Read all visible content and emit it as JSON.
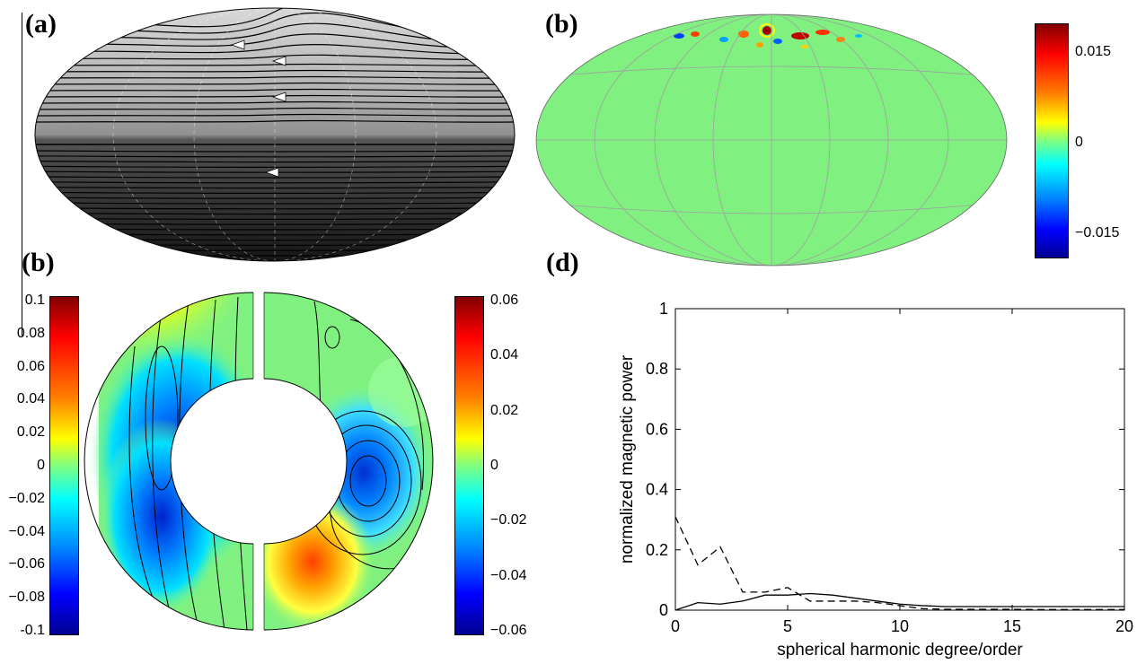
{
  "panels": {
    "a_label": "(a)",
    "b_top_label": "(b)",
    "b_bottom_label": "(b)",
    "d_label": "(d)"
  },
  "colorbar_top": {
    "ticks": [
      "0.015",
      "0",
      "−0.015"
    ]
  },
  "colorbar_left": {
    "ticks": [
      "0.1",
      "0.08",
      "0.06",
      "0.04",
      "0.02",
      "0",
      "−0.02",
      "−0.04",
      "−0.06",
      "−0.08",
      "-0.1"
    ]
  },
  "colorbar_right": {
    "ticks": [
      "0.06",
      "0.04",
      "0.02",
      "0",
      "−0.02",
      "−0.04",
      "−0.06"
    ]
  },
  "colors": {
    "jet": [
      "#00008f",
      "#0000ff",
      "#0080ff",
      "#00ffff",
      "#80ff80",
      "#ffff00",
      "#ff8000",
      "#ff0000",
      "#800000"
    ],
    "map_green": "#80f080"
  },
  "chart_data": {
    "type": "line",
    "xlabel": "spherical harmonic degree/order",
    "ylabel": "normalized magnetic power",
    "xlim": [
      0,
      20
    ],
    "ylim": [
      0,
      1
    ],
    "xticks": [
      "0",
      "5",
      "10",
      "15",
      "20"
    ],
    "yticks": [
      "0",
      "0.2",
      "0.4",
      "0.6",
      "0.8",
      "1"
    ],
    "series": [
      {
        "style": "solid",
        "x": [
          0,
          1,
          2,
          3,
          4,
          5,
          6,
          7,
          8,
          9,
          10,
          11,
          12,
          13,
          14,
          15,
          16,
          17,
          18,
          19,
          20
        ],
        "values": [
          0.0,
          0.025,
          0.02,
          0.03,
          0.05,
          0.05,
          0.055,
          0.05,
          0.04,
          0.03,
          0.02,
          0.015,
          0.012,
          0.012,
          0.012,
          0.012,
          0.012,
          0.012,
          0.012,
          0.012,
          0.012
        ]
      },
      {
        "style": "dashed",
        "x": [
          0,
          1,
          2,
          3,
          4,
          5,
          6,
          7,
          8,
          9,
          10,
          11,
          12,
          13,
          14,
          15,
          16,
          17,
          18,
          19,
          20
        ],
        "values": [
          0.31,
          0.15,
          0.21,
          0.06,
          0.06,
          0.075,
          0.03,
          0.03,
          0.03,
          0.025,
          0.015,
          0.005,
          0.003,
          0.003,
          0.003,
          0.003,
          0.002,
          0.002,
          0.002,
          0.002,
          0.002
        ]
      }
    ]
  }
}
